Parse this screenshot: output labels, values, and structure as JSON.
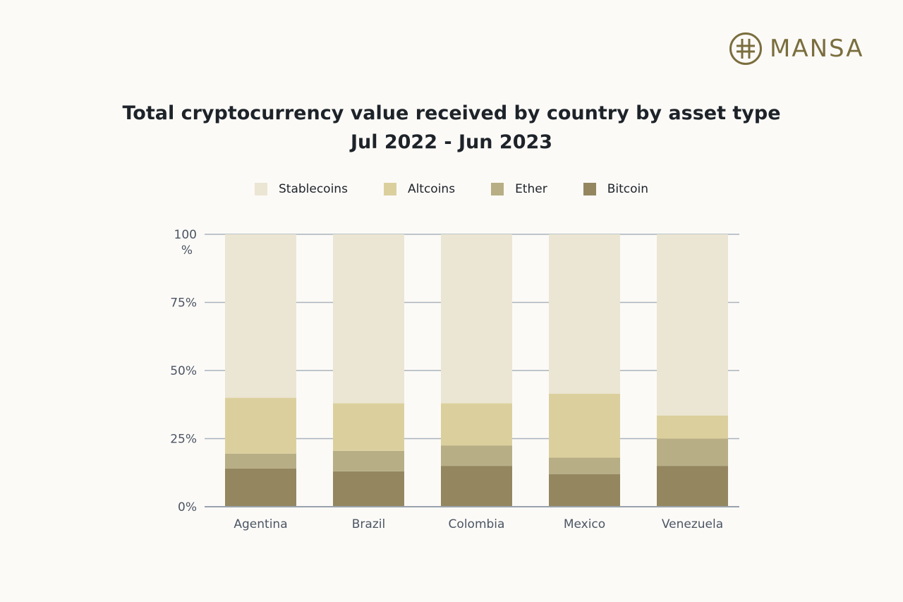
{
  "brand": {
    "name": "MANSA",
    "icon": "mansa-logo-icon",
    "color": "#7a6e3e"
  },
  "chart_data": {
    "type": "bar",
    "stacked": true,
    "title": "Total cryptocurrency value received by country by asset type",
    "subtitle": "Jul 2022 - Jun 2023",
    "categories": [
      "Agentina",
      "Brazil",
      "Colombia",
      "Mexico",
      "Venezuela"
    ],
    "series": [
      {
        "name": "Bitcoin",
        "color": "#948760",
        "values": [
          14,
          13,
          15,
          12,
          15
        ]
      },
      {
        "name": "Ether",
        "color": "#b7ae85",
        "values": [
          5.5,
          7.5,
          7.5,
          6,
          10
        ]
      },
      {
        "name": "Altcoins",
        "color": "#dbd09d",
        "values": [
          20.5,
          17.5,
          15.5,
          23.5,
          8.5
        ]
      },
      {
        "name": "Stablecoins",
        "color": "#ebe5d3",
        "values": [
          60,
          62,
          62,
          58.5,
          66.5
        ]
      }
    ],
    "legend_order": [
      "Stablecoins",
      "Altcoins",
      "Ether",
      "Bitcoin"
    ],
    "legend_position": "top-center",
    "y_ticks": [
      "0%",
      "25%",
      "50%",
      "75%",
      "100\n%"
    ],
    "ylim": [
      0,
      100
    ],
    "xlabel": "",
    "ylabel": "",
    "grid": true
  }
}
